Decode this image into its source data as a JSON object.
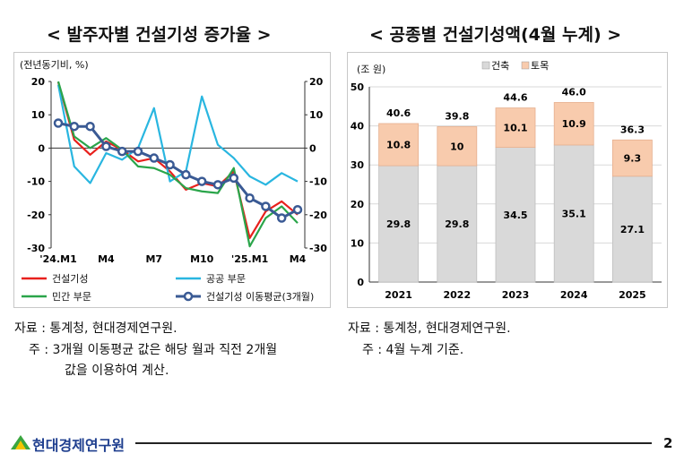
{
  "left_title": "< 발주자별 건설기성 증가율 >",
  "right_title": "< 공종별 건설기성액(4월 누계) >",
  "chart_data": [
    {
      "type": "line",
      "unit_label": "(전년동기비, %)",
      "x_tick_labels": [
        "'24.M1",
        "M4",
        "M7",
        "M10",
        "'25.M1",
        "M4"
      ],
      "ylim": [
        -30,
        20
      ],
      "y_ticks": [
        20,
        10,
        0,
        -10,
        -20,
        -30
      ],
      "dual_axis": true,
      "grid": false,
      "legend_position": "bottom",
      "x": [
        "'24.M1",
        "M2",
        "M3",
        "M4",
        "M5",
        "M6",
        "M7",
        "M8",
        "M9",
        "M10",
        "M11",
        "M12",
        "'25.M1",
        "M2",
        "M3",
        "M4"
      ],
      "series": [
        {
          "name": "건설기성",
          "color": "#e8201c",
          "values": [
            19.8,
            2.5,
            -2.0,
            2.0,
            -0.5,
            -4.0,
            -3.0,
            -7.0,
            -12.5,
            -10.5,
            -11.5,
            -7.0,
            -27.0,
            -19.0,
            -16.0,
            -20.0
          ]
        },
        {
          "name": "공공 부문",
          "color": "#29b6e0",
          "values": [
            19.0,
            -5.5,
            -10.5,
            -1.5,
            -3.5,
            0.0,
            12.0,
            -10.0,
            -7.0,
            15.5,
            1.0,
            -3.0,
            -8.5,
            -11.0,
            -7.5,
            -10.0
          ]
        },
        {
          "name": "민간 부문",
          "color": "#2aa54a",
          "values": [
            20.0,
            3.5,
            0.0,
            3.0,
            -0.5,
            -5.5,
            -6.0,
            -8.0,
            -12.0,
            -13.0,
            -13.5,
            -6.0,
            -29.5,
            -21.0,
            -17.5,
            -22.5
          ]
        },
        {
          "name": "건설기성 이동평균(3개월)",
          "color": "#3a5a94",
          "values": [
            7.5,
            6.5,
            6.5,
            0.5,
            -1.0,
            -1.0,
            -3.0,
            -5.0,
            -8.0,
            -10.0,
            -11.0,
            -9.0,
            -15.0,
            -17.5,
            -21.0,
            -18.5
          ]
        }
      ]
    },
    {
      "type": "bar",
      "stacked": true,
      "unit_label": "(조 원)",
      "categories": [
        "2021",
        "2022",
        "2023",
        "2024",
        "2025"
      ],
      "ylim": [
        0,
        50
      ],
      "y_ticks": [
        0,
        10,
        20,
        30,
        40,
        50
      ],
      "grid": true,
      "legend_position": "top",
      "series": [
        {
          "name": "건축",
          "color": "#d9d9d9",
          "values": [
            29.8,
            29.8,
            34.5,
            35.1,
            27.1
          ]
        },
        {
          "name": "토목",
          "color": "#f8cbad",
          "values": [
            10.8,
            10.0,
            10.1,
            10.9,
            9.3
          ]
        }
      ],
      "totals": [
        40.6,
        39.8,
        44.6,
        46.0,
        36.3
      ]
    }
  ],
  "notes_left": {
    "source": "자료 : 통계청, 현대경제연구원.",
    "note1": "주 : 3개월 이동평균 값은 해당 월과 직전 2개월",
    "note2": "값을 이용하여 계산."
  },
  "notes_right": {
    "source": "자료 : 통계청, 현대경제연구원.",
    "note1": "주 : 4월 누계 기준."
  },
  "footer": {
    "org": "현대경제연구원",
    "page": "2",
    "logo_color": "#3aa63f"
  }
}
